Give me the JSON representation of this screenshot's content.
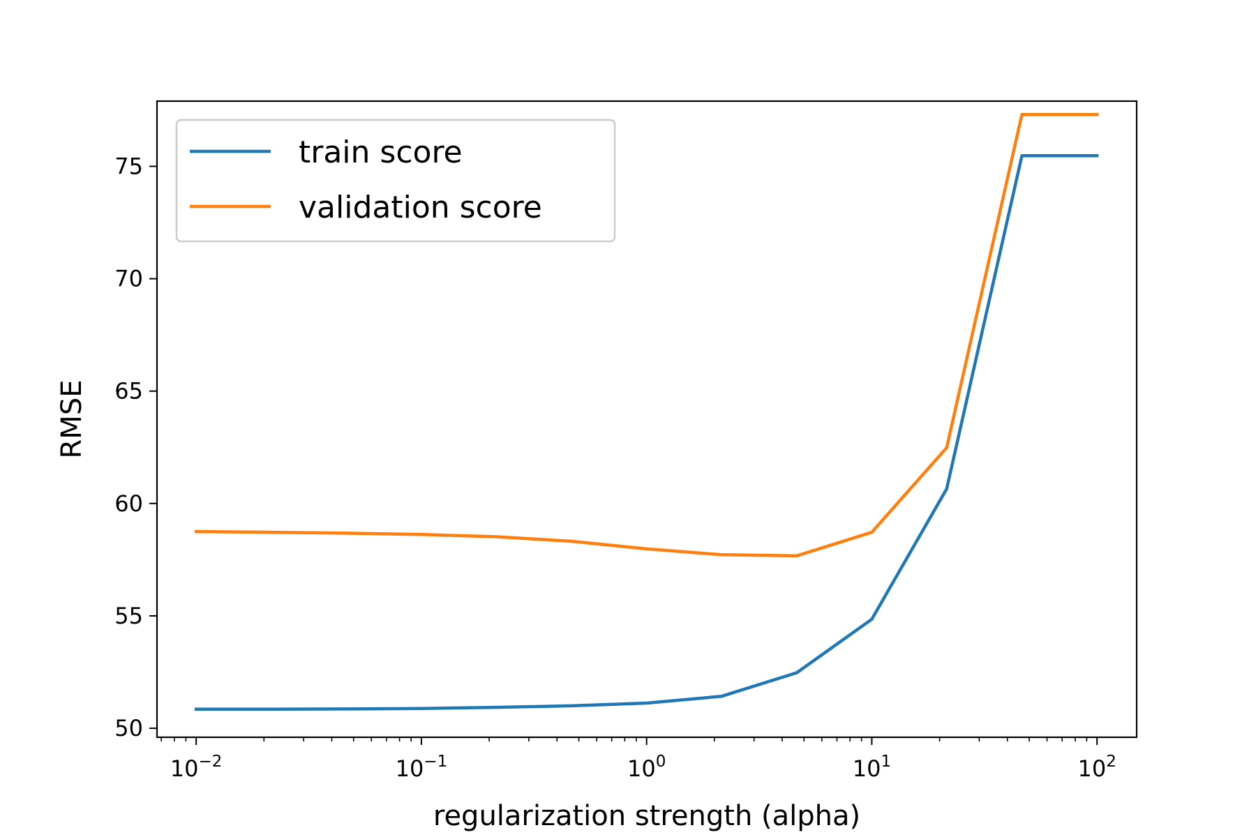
{
  "chart_data": {
    "type": "line",
    "title": "",
    "xlabel": "regularization strength (alpha)",
    "ylabel": "RMSE",
    "xscale": "log",
    "xlim": [
      0.0067,
      150
    ],
    "ylim": [
      49.6,
      77.9
    ],
    "grid": false,
    "legend_position": "upper left",
    "x": [
      0.01,
      0.0215,
      0.0464,
      0.1,
      0.215,
      0.464,
      1.0,
      2.15,
      4.64,
      10.0,
      21.5,
      46.4,
      100.0
    ],
    "series": [
      {
        "name": "train score",
        "color": "#1f77b4",
        "values": [
          50.85,
          50.85,
          50.86,
          50.88,
          50.93,
          51.0,
          51.12,
          51.42,
          52.47,
          54.85,
          60.65,
          75.47,
          75.47
        ]
      },
      {
        "name": "validation score",
        "color": "#ff7f0e",
        "values": [
          58.75,
          58.72,
          58.68,
          58.62,
          58.52,
          58.32,
          57.98,
          57.72,
          57.67,
          58.72,
          62.48,
          77.3,
          77.3
        ]
      }
    ],
    "yticks": [
      {
        "value": 50,
        "label": "50"
      },
      {
        "value": 55,
        "label": "55"
      },
      {
        "value": 60,
        "label": "60"
      },
      {
        "value": 65,
        "label": "65"
      },
      {
        "value": 70,
        "label": "70"
      },
      {
        "value": 75,
        "label": "75"
      }
    ],
    "xticks": [
      {
        "value": 0.01,
        "base": "10",
        "exp": "−2"
      },
      {
        "value": 0.1,
        "base": "10",
        "exp": "−1"
      },
      {
        "value": 1,
        "base": "10",
        "exp": "0"
      },
      {
        "value": 10,
        "base": "10",
        "exp": "1"
      },
      {
        "value": 100,
        "base": "10",
        "exp": "2"
      }
    ]
  }
}
